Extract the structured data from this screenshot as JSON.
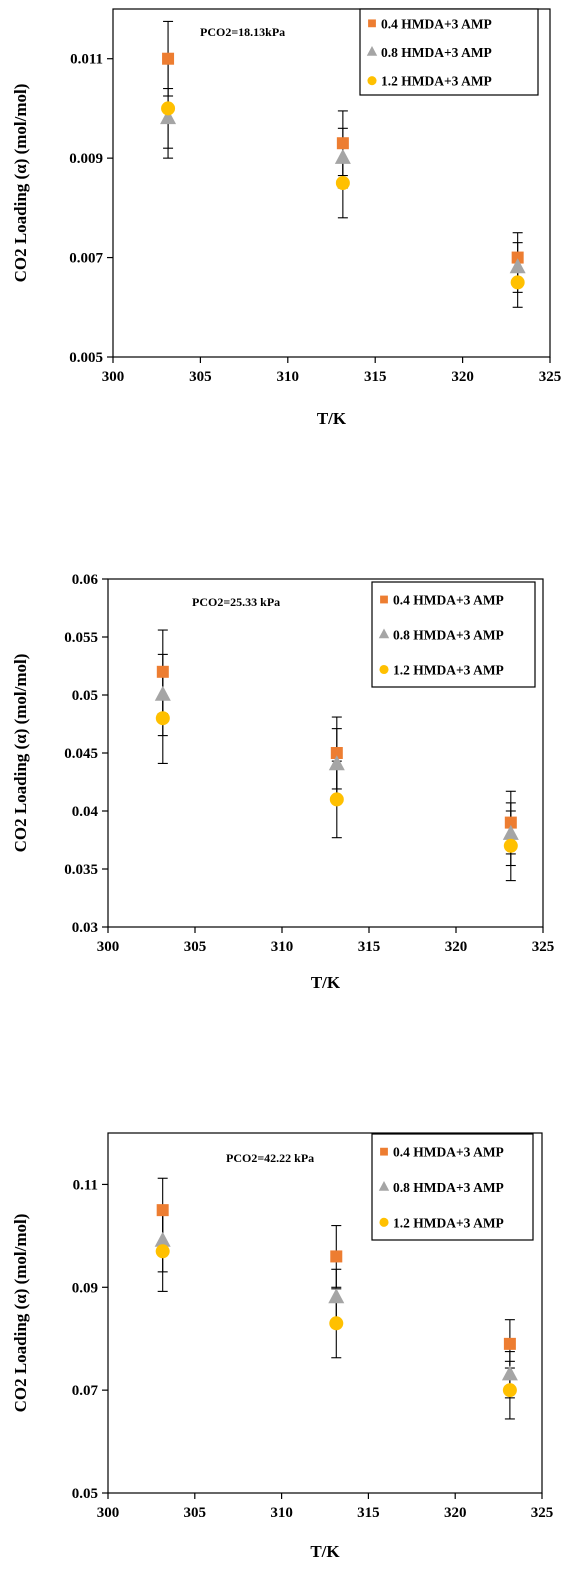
{
  "chart_data": [
    {
      "type": "scatter",
      "annotation": "PCO2=18.13kPa",
      "xlabel": "T/K",
      "ylabel": "CO2 Loading (α) (mol/mol)",
      "xlim": [
        300,
        325
      ],
      "ylim": [
        0.005,
        0.012
      ],
      "xticks": [
        300,
        305,
        310,
        315,
        320,
        325
      ],
      "xtick_labels": [
        "300",
        "305",
        "310",
        "315",
        "320",
        "325"
      ],
      "yticks": [
        0.005,
        0.007,
        0.009,
        0.011
      ],
      "ytick_labels": [
        "0.005",
        "0.007",
        "0.009",
        "0.011"
      ],
      "grid": false,
      "legend_position": "top-right",
      "series": [
        {
          "name": "0.4 HMDA+3 AMP",
          "marker": "square",
          "color": "#ED7D31",
          "points": [
            {
              "x": 303.15,
              "y": 0.011,
              "err": 0.00075
            },
            {
              "x": 313.15,
              "y": 0.0093,
              "err": 0.00065
            },
            {
              "x": 323.15,
              "y": 0.007,
              "err": 0.0005
            }
          ]
        },
        {
          "name": "0.8 HMDA+3 AMP",
          "marker": "triangle",
          "color": "#A5A5A5",
          "points": [
            {
              "x": 303.15,
              "y": 0.0098,
              "err": 0.0006
            },
            {
              "x": 313.15,
              "y": 0.009,
              "err": 0.0006
            },
            {
              "x": 323.15,
              "y": 0.0068,
              "err": 0.0005
            }
          ]
        },
        {
          "name": "1.2 HMDA+3 AMP",
          "marker": "circle",
          "color": "#FFC000",
          "points": [
            {
              "x": 303.15,
              "y": 0.01,
              "err": 0.001
            },
            {
              "x": 313.15,
              "y": 0.0085,
              "err": 0.0007
            },
            {
              "x": 323.15,
              "y": 0.0065,
              "err": 0.0005
            }
          ]
        }
      ]
    },
    {
      "type": "scatter",
      "annotation": "PCO2=25.33 kPa",
      "xlabel": "T/K",
      "ylabel": "CO2 Loading (α) (mol/mol)",
      "xlim": [
        300,
        325
      ],
      "ylim": [
        0.03,
        0.06
      ],
      "xticks": [
        300,
        305,
        310,
        315,
        320,
        325
      ],
      "xtick_labels": [
        "300",
        "305",
        "310",
        "315",
        "320",
        "325"
      ],
      "yticks": [
        0.03,
        0.035,
        0.04,
        0.045,
        0.05,
        0.055,
        0.06
      ],
      "ytick_labels": [
        "0.03",
        "0.035",
        "0.04",
        "0.045",
        "0.05",
        "0.055",
        "0.06"
      ],
      "grid": false,
      "legend_position": "top-right",
      "series": [
        {
          "name": "0.4 HMDA+3 AMP",
          "marker": "square",
          "color": "#ED7D31",
          "points": [
            {
              "x": 303.15,
              "y": 0.052,
              "err": 0.0036
            },
            {
              "x": 313.15,
              "y": 0.045,
              "err": 0.0031
            },
            {
              "x": 323.15,
              "y": 0.039,
              "err": 0.0027
            }
          ]
        },
        {
          "name": "0.8 HMDA+3 AMP",
          "marker": "triangle",
          "color": "#A5A5A5",
          "points": [
            {
              "x": 303.15,
              "y": 0.05,
              "err": 0.0035
            },
            {
              "x": 313.15,
              "y": 0.044,
              "err": 0.0031
            },
            {
              "x": 323.15,
              "y": 0.038,
              "err": 0.0027
            }
          ]
        },
        {
          "name": "1.2 HMDA+3 AMP",
          "marker": "circle",
          "color": "#FFC000",
          "points": [
            {
              "x": 303.15,
              "y": 0.048,
              "err": 0.0039
            },
            {
              "x": 313.15,
              "y": 0.041,
              "err": 0.0033
            },
            {
              "x": 323.15,
              "y": 0.037,
              "err": 0.003
            }
          ]
        }
      ]
    },
    {
      "type": "scatter",
      "annotation": "PCO2=42.22 kPa",
      "xlabel": "T/K",
      "ylabel": "CO2 Loading (α) (mol/mol)",
      "xlim": [
        300,
        325
      ],
      "ylim": [
        0.05,
        0.12
      ],
      "xticks": [
        300,
        305,
        310,
        315,
        320,
        325
      ],
      "xtick_labels": [
        "300",
        "305",
        "310",
        "315",
        "320",
        "325"
      ],
      "yticks": [
        0.05,
        0.07,
        0.09,
        0.11
      ],
      "ytick_labels": [
        "0.05",
        "0.07",
        "0.09",
        "0.11"
      ],
      "grid": false,
      "legend_position": "top-right",
      "series": [
        {
          "name": "0.4 HMDA+3 AMP",
          "marker": "square",
          "color": "#ED7D31",
          "points": [
            {
              "x": 303.15,
              "y": 0.105,
              "err": 0.0062
            },
            {
              "x": 313.15,
              "y": 0.096,
              "err": 0.006
            },
            {
              "x": 323.15,
              "y": 0.079,
              "err": 0.0047
            }
          ]
        },
        {
          "name": "0.8 HMDA+3 AMP",
          "marker": "triangle",
          "color": "#A5A5A5",
          "points": [
            {
              "x": 303.15,
              "y": 0.099,
              "err": 0.006
            },
            {
              "x": 313.15,
              "y": 0.088,
              "err": 0.0055
            },
            {
              "x": 323.15,
              "y": 0.073,
              "err": 0.0045
            }
          ]
        },
        {
          "name": "1.2 HMDA+3 AMP",
          "marker": "circle",
          "color": "#FFC000",
          "points": [
            {
              "x": 303.15,
              "y": 0.097,
              "err": 0.0078
            },
            {
              "x": 313.15,
              "y": 0.083,
              "err": 0.0067
            },
            {
              "x": 323.15,
              "y": 0.07,
              "err": 0.0056
            }
          ]
        }
      ]
    }
  ]
}
